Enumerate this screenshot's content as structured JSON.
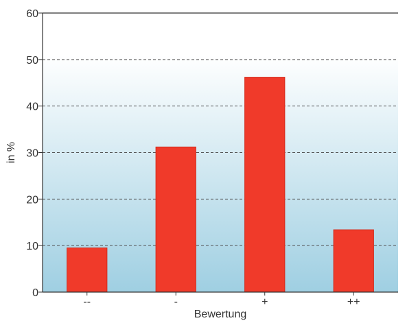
{
  "chart_data": {
    "type": "bar",
    "title": "",
    "xlabel": "Bewertung",
    "ylabel": "in %",
    "categories": [
      "--",
      "-",
      "+",
      "++"
    ],
    "values": [
      9.5,
      31.2,
      46.2,
      13.4
    ],
    "ylim": [
      0,
      60
    ],
    "yticks": [
      0,
      10,
      20,
      30,
      40,
      50,
      60
    ],
    "grid": true,
    "legend": "none",
    "colors": {
      "bar": "#f03a2a",
      "bar_stroke": "#d22b1c",
      "background_top": "#ffffff",
      "background_bottom": "#9fcfe2",
      "gridline": "#555555",
      "axis": "#333333"
    }
  }
}
